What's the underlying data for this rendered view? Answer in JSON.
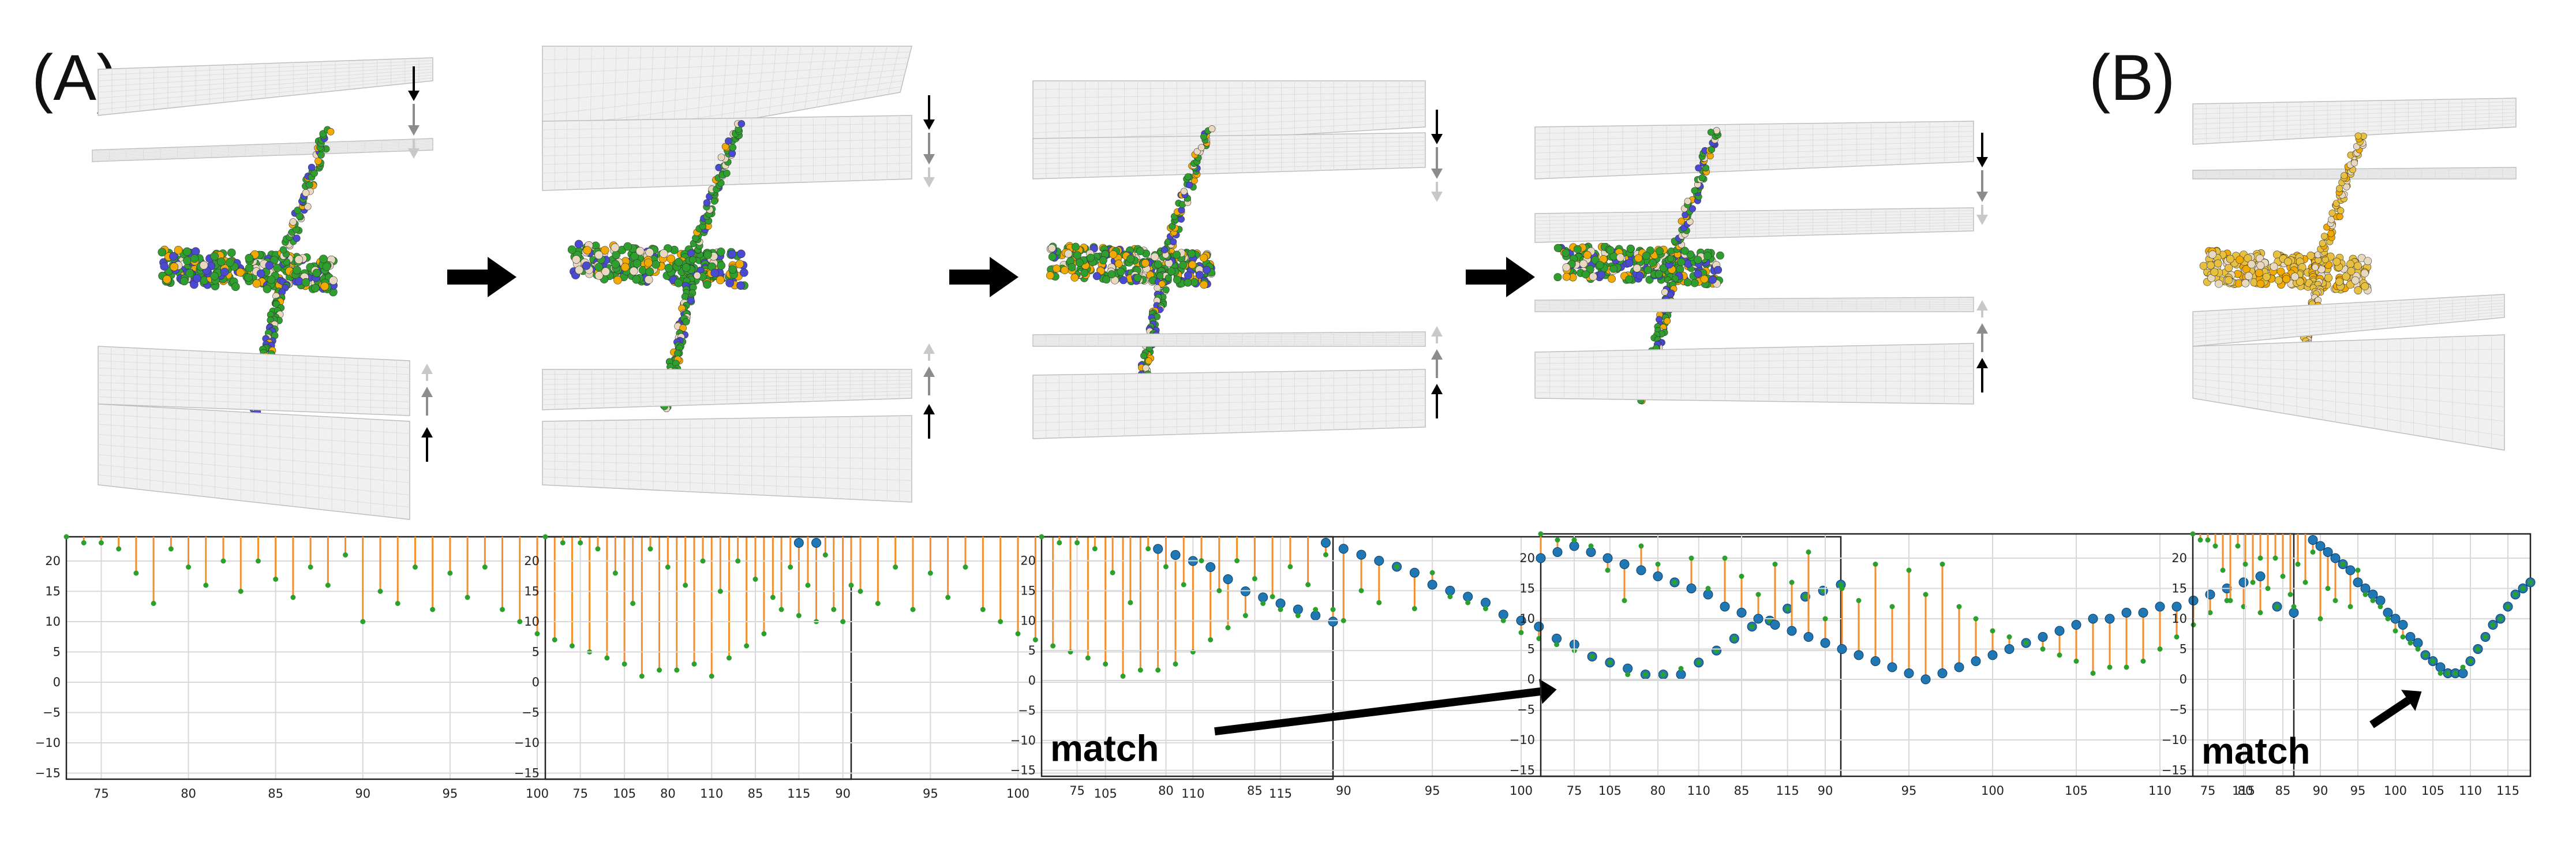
{
  "labels": {
    "panel_a": "(A)",
    "panel_b": "(B)",
    "match_text": "match"
  },
  "colors": {
    "stem": "#f28e2b",
    "model_point": "#2ca02c",
    "target_point": "#1f77b4",
    "grid": "#d9d9d9",
    "plane_fill": "#f0f0f0",
    "arrow_black": "#000000",
    "arrow_gray": "#8c8c8c",
    "arrow_light": "#c8c8c8",
    "helix_green": "#2e9e2e",
    "helix_orange": "#f2a900",
    "helix_blue": "#4a4ad0",
    "helix_pale": "#e8d8c0",
    "helix_yellow": "#e8c040"
  },
  "icons": {
    "transition_arrow": "arrow-right-icon",
    "pointer_arrow": "arrow-up-right-icon",
    "membrane_direction": "arrow-down-icon"
  },
  "chart_data": [
    {
      "type": "scatter",
      "panel": "A-1",
      "xlim": [
        73,
        118
      ],
      "ylim": [
        -16,
        24
      ],
      "xticks": [
        75,
        80,
        85,
        90,
        95,
        100,
        105,
        110,
        115
      ],
      "yticks": [
        -15,
        -10,
        -5,
        0,
        5,
        10,
        15,
        20
      ],
      "grid": true,
      "x": [
        73,
        74,
        75,
        76,
        77,
        78,
        79,
        80,
        81,
        82,
        83,
        84,
        85,
        86,
        87,
        88,
        89,
        90,
        91,
        92,
        93,
        94,
        95,
        96,
        97,
        98,
        99,
        100,
        101,
        102,
        103,
        104,
        105,
        106,
        107,
        108,
        109,
        110,
        111,
        112,
        113,
        114,
        115,
        116,
        117,
        118
      ],
      "model": [
        24,
        23,
        23,
        22,
        18,
        13,
        22,
        19,
        16,
        20,
        15,
        20,
        17,
        14,
        19,
        16,
        21,
        10,
        15,
        13,
        19,
        12,
        18,
        14,
        19,
        12,
        10,
        8,
        7,
        6,
        5,
        4,
        3,
        1,
        2,
        2,
        3,
        1,
        4,
        6,
        8,
        12,
        11,
        10,
        12,
        16
      ],
      "target": [
        24,
        24,
        24,
        24,
        24,
        24,
        24,
        24,
        24,
        24,
        24,
        24,
        24,
        24,
        24,
        24,
        24,
        24,
        24,
        24,
        24,
        24,
        24,
        24,
        24,
        24,
        24,
        24,
        24,
        24,
        24,
        24,
        24,
        24,
        24,
        24,
        24,
        24,
        24,
        24,
        24,
        24,
        23,
        23,
        24,
        24
      ]
    },
    {
      "type": "scatter",
      "panel": "A-2",
      "xlim": [
        73,
        118
      ],
      "ylim": [
        -16,
        24
      ],
      "xticks": [
        75,
        80,
        85,
        90,
        95,
        100,
        105,
        110,
        115
      ],
      "yticks": [
        -15,
        -10,
        -5,
        0,
        5,
        10,
        15,
        20
      ],
      "grid": true,
      "x": [
        73,
        74,
        75,
        76,
        77,
        78,
        79,
        80,
        81,
        82,
        83,
        84,
        85,
        86,
        87,
        88,
        89,
        90,
        91,
        92,
        93,
        94,
        95,
        96,
        97,
        98,
        99,
        100,
        101,
        102,
        103,
        104,
        105,
        106,
        107,
        108,
        109,
        110,
        111,
        112,
        113,
        114,
        115,
        116,
        117,
        118
      ],
      "model": [
        24,
        23,
        23,
        22,
        18,
        13,
        22,
        19,
        16,
        20,
        15,
        20,
        17,
        14,
        19,
        16,
        21,
        10,
        15,
        13,
        19,
        12,
        18,
        14,
        19,
        12,
        10,
        8,
        7,
        6,
        5,
        4,
        3,
        1,
        2,
        2,
        3,
        5,
        7,
        9,
        11,
        13,
        12,
        11,
        12,
        12
      ],
      "target": [
        24,
        24,
        24,
        24,
        24,
        24,
        24,
        24,
        24,
        24,
        24,
        24,
        24,
        24,
        24,
        24,
        24,
        24,
        24,
        24,
        24,
        24,
        24,
        24,
        24,
        24,
        24,
        24,
        24,
        24,
        24,
        24,
        24,
        24,
        24,
        22,
        21,
        20,
        19,
        17,
        15,
        14,
        13,
        12,
        11,
        10
      ]
    },
    {
      "type": "scatter",
      "panel": "A-3",
      "xlim": [
        73,
        118
      ],
      "ylim": [
        -16,
        24
      ],
      "xticks": [
        75,
        80,
        85,
        90,
        95,
        100,
        105,
        110,
        115
      ],
      "yticks": [
        -15,
        -10,
        -5,
        0,
        5,
        10,
        15,
        20
      ],
      "grid": true,
      "x": [
        73,
        74,
        75,
        76,
        77,
        78,
        79,
        80,
        81,
        82,
        83,
        84,
        85,
        86,
        87,
        88,
        89,
        90,
        91,
        92,
        93,
        94,
        95,
        96,
        97,
        98,
        99,
        100,
        101,
        102,
        103,
        104,
        105,
        106,
        107,
        108,
        109,
        110,
        111,
        112,
        113,
        114,
        115,
        116,
        117,
        118
      ],
      "model": [
        24,
        23,
        23,
        22,
        18,
        13,
        22,
        19,
        16,
        20,
        15,
        20,
        17,
        14,
        19,
        16,
        21,
        10,
        15,
        13,
        19,
        12,
        18,
        14,
        13,
        12,
        10,
        8,
        7,
        6,
        5,
        4,
        3,
        1,
        1,
        1,
        2,
        3,
        5,
        7,
        9,
        10,
        12,
        14,
        15,
        16
      ],
      "target": [
        24,
        24,
        24,
        24,
        24,
        24,
        24,
        24,
        24,
        24,
        24,
        24,
        24,
        24,
        24,
        24,
        23,
        22,
        21,
        20,
        19,
        18,
        16,
        15,
        14,
        13,
        11,
        10,
        9,
        7,
        6,
        4,
        3,
        2,
        1,
        1,
        1,
        3,
        5,
        7,
        9,
        10,
        12,
        14,
        15,
        16
      ]
    },
    {
      "type": "scatter",
      "panel": "A-4",
      "xlim": [
        73,
        118
      ],
      "ylim": [
        -16,
        24
      ],
      "xticks": [
        75,
        80,
        85,
        90,
        95,
        100,
        105,
        110,
        115
      ],
      "yticks": [
        -15,
        -10,
        -5,
        0,
        5,
        10,
        15,
        20
      ],
      "grid": true,
      "x": [
        73,
        74,
        75,
        76,
        77,
        78,
        79,
        80,
        81,
        82,
        83,
        84,
        85,
        86,
        87,
        88,
        89,
        90,
        91,
        92,
        93,
        94,
        95,
        96,
        97,
        98,
        99,
        100,
        101,
        102,
        103,
        104,
        105,
        106,
        107,
        108,
        109,
        110,
        111,
        112,
        113,
        114,
        115,
        116,
        117,
        118
      ],
      "model": [
        24,
        23,
        23,
        22,
        18,
        13,
        22,
        19,
        16,
        20,
        15,
        20,
        17,
        14,
        19,
        16,
        21,
        10,
        15,
        13,
        19,
        12,
        18,
        14,
        19,
        12,
        10,
        8,
        7,
        6,
        5,
        4,
        3,
        1,
        2,
        2,
        3,
        5,
        7,
        9,
        11,
        13,
        12,
        11,
        12,
        12
      ],
      "target": [
        20,
        21,
        22,
        21,
        20,
        19,
        18,
        17,
        16,
        15,
        14,
        12,
        11,
        10,
        9,
        8,
        7,
        6,
        5,
        4,
        3,
        2,
        1,
        0,
        1,
        2,
        3,
        4,
        5,
        6,
        7,
        8,
        9,
        10,
        10,
        11,
        11,
        12,
        12,
        13,
        14,
        15,
        16,
        17,
        12,
        11
      ]
    },
    {
      "type": "scatter",
      "panel": "B",
      "xlim": [
        73,
        118
      ],
      "ylim": [
        -16,
        24
      ],
      "xticks": [
        75,
        80,
        85,
        90,
        95,
        100,
        105,
        110,
        115
      ],
      "yticks": [
        -15,
        -10,
        -5,
        0,
        5,
        10,
        15,
        20
      ],
      "grid": true,
      "x": [
        73,
        74,
        75,
        76,
        77,
        78,
        79,
        80,
        81,
        82,
        83,
        84,
        85,
        86,
        87,
        88,
        89,
        90,
        91,
        92,
        93,
        94,
        95,
        96,
        97,
        98,
        99,
        100,
        101,
        102,
        103,
        104,
        105,
        106,
        107,
        108,
        109,
        110,
        111,
        112,
        113,
        114,
        115,
        116,
        117,
        118
      ],
      "model": [
        24,
        23,
        23,
        22,
        18,
        13,
        22,
        19,
        16,
        20,
        15,
        20,
        17,
        14,
        19,
        16,
        21,
        10,
        15,
        13,
        19,
        12,
        18,
        14,
        13,
        12,
        10,
        8,
        7,
        6,
        5,
        4,
        3,
        1,
        1,
        1,
        2,
        3,
        5,
        7,
        9,
        10,
        12,
        14,
        15,
        16
      ],
      "target": [
        24,
        24,
        24,
        24,
        24,
        24,
        24,
        24,
        24,
        24,
        24,
        24,
        24,
        24,
        24,
        24,
        23,
        22,
        21,
        20,
        19,
        18,
        16,
        15,
        14,
        13,
        11,
        10,
        9,
        7,
        6,
        4,
        3,
        2,
        1,
        1,
        1,
        3,
        5,
        7,
        9,
        10,
        12,
        14,
        15,
        16
      ]
    }
  ]
}
